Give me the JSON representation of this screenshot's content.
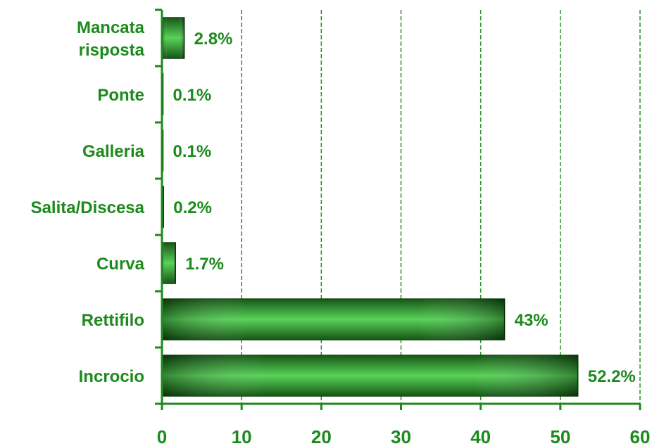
{
  "colors": {
    "text": "#1c8a1c",
    "axis": "#1c8a1c",
    "grid": "#2b8f2b",
    "bar_dark": "#0a4d0a",
    "bar_mid": "#1fa41f",
    "bar_light": "#4fd04f",
    "bar_border": "#0b3f0b"
  },
  "chart_data": {
    "type": "bar",
    "orientation": "horizontal",
    "title": "",
    "xlabel": "",
    "ylabel": "",
    "categories": [
      "Mancata risposta",
      "Ponte",
      "Galleria",
      "Salita/Discesa",
      "Curva",
      "Rettifilo",
      "Incrocio"
    ],
    "category_lines": [
      [
        "Mancata",
        "risposta"
      ],
      [
        "Ponte"
      ],
      [
        "Galleria"
      ],
      [
        "Salita/Discesa"
      ],
      [
        "Curva"
      ],
      [
        "Rettifilo"
      ],
      [
        "Incrocio"
      ]
    ],
    "values": [
      2.8,
      0.1,
      0.1,
      0.2,
      1.7,
      43,
      52.2
    ],
    "data_labels": [
      "2.8%",
      "0.1%",
      "0.1%",
      "0.2%",
      "1.7%",
      "43%",
      "52.2%"
    ],
    "xlim": [
      0,
      60
    ],
    "xticks": [
      0,
      10,
      20,
      30,
      40,
      50,
      60
    ],
    "xtick_labels": [
      "0",
      "10",
      "20",
      "30",
      "40",
      "50",
      "60"
    ],
    "grid": "vertical dashed",
    "legend": "none"
  }
}
